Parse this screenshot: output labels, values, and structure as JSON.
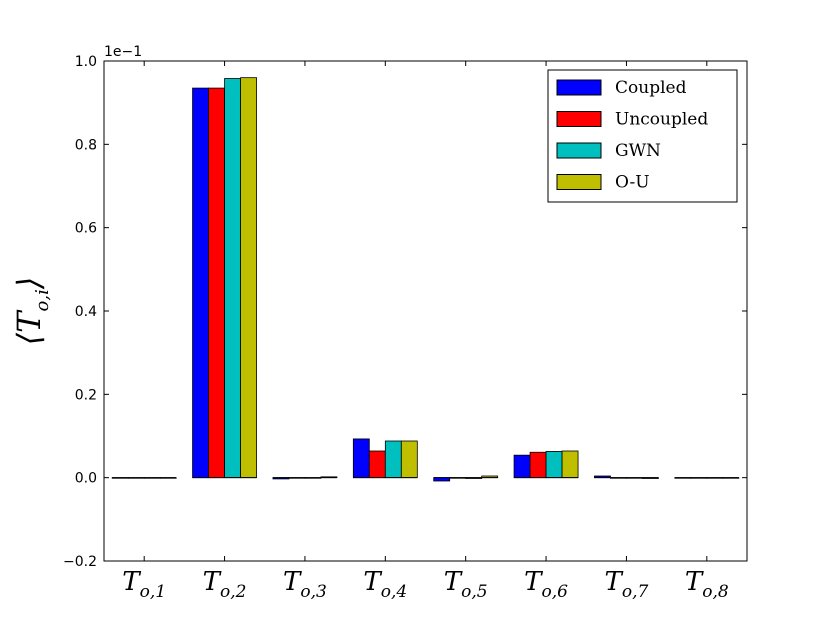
{
  "chart_data": {
    "type": "bar",
    "ylabel": "⟨T",
    "ylabel_sub": "o,i",
    "ylabel_close": "⟩",
    "y_scale_label": "1e−1",
    "ylim": [
      -0.2,
      1.0
    ],
    "y_ticks": [
      -0.2,
      0.0,
      0.2,
      0.4,
      0.6,
      0.8,
      1.0
    ],
    "y_tick_labels": [
      "−0.2",
      "0.0",
      "0.2",
      "0.4",
      "0.6",
      "0.8",
      "1.0"
    ],
    "categories": [
      {
        "main": "T",
        "sub": "o,1"
      },
      {
        "main": "T",
        "sub": "o,2"
      },
      {
        "main": "T",
        "sub": "o,3"
      },
      {
        "main": "T",
        "sub": "o,4"
      },
      {
        "main": "T",
        "sub": "o,5"
      },
      {
        "main": "T",
        "sub": "o,6"
      },
      {
        "main": "T",
        "sub": "o,7"
      },
      {
        "main": "T",
        "sub": "o,8"
      }
    ],
    "series": [
      {
        "name": "Coupled",
        "color": "#0000ff",
        "values": [
          0.0,
          0.935,
          -0.003,
          0.093,
          -0.008,
          0.054,
          0.004,
          0.0
        ]
      },
      {
        "name": "Uncoupled",
        "color": "#ff0000",
        "values": [
          0.0,
          0.935,
          0.0,
          0.064,
          0.0,
          0.061,
          0.0,
          0.0
        ]
      },
      {
        "name": "GWN",
        "color": "#00bfbf",
        "values": [
          0.0,
          0.958,
          0.0,
          0.088,
          -0.002,
          0.063,
          0.0,
          0.0
        ]
      },
      {
        "name": "O-U",
        "color": "#bfbf00",
        "values": [
          0.0,
          0.96,
          0.002,
          0.088,
          0.004,
          0.064,
          -0.002,
          0.0
        ]
      }
    ],
    "legend_position": "top-right",
    "grid": false
  }
}
